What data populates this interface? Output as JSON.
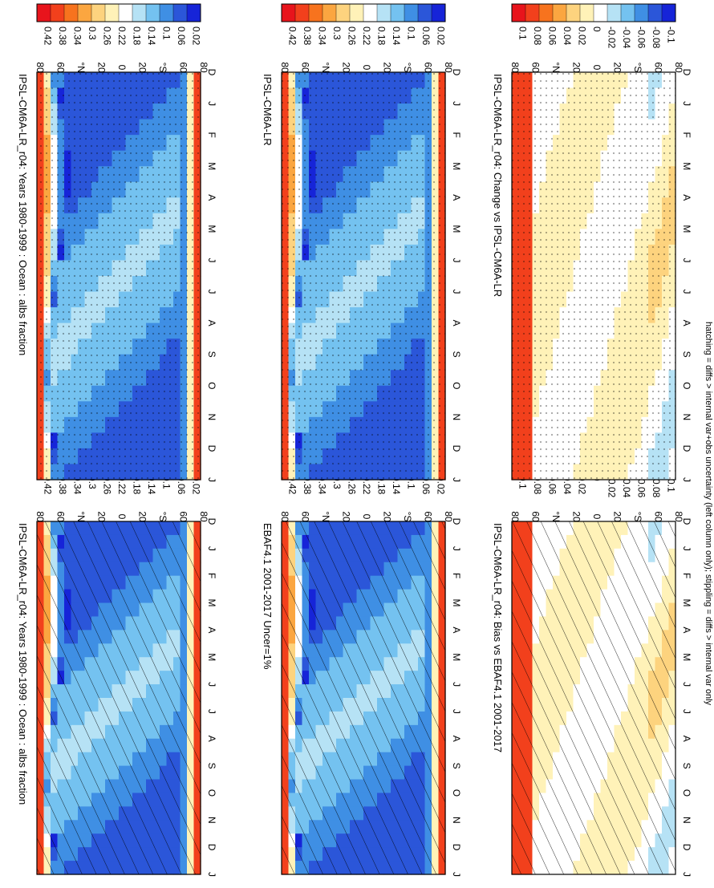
{
  "footer_note": "hatching = diffs > internal var+obs uncertainty (left column only); stippling = diffs > internal var only",
  "chart_data": [
    {
      "type": "heatmap",
      "title": "IPSL-CM6A-LR_r04: Years 1980-1999 : Ocean : albs fraction",
      "x_ticks": [
        "D",
        "J",
        "F",
        "M",
        "A",
        "M",
        "J",
        "J",
        "A",
        "S",
        "O",
        "N",
        "D",
        "J"
      ],
      "y_ticks": [
        "80",
        "60",
        "°N",
        "20",
        "0",
        "20",
        "°S",
        "60",
        "80"
      ],
      "colorbar_labels": [
        "0.42",
        "0.38",
        "0.34",
        "0.3",
        "0.26",
        "0.22",
        "0.18",
        "0.14",
        "0.1",
        "0.06",
        "0.02"
      ],
      "pattern": "hatch",
      "palette": "abs"
    },
    {
      "type": "heatmap",
      "title": "IPSL-CM6A-LR_r04: Years 1980-1999 : Ocean : albs fraction",
      "x_ticks": [
        "D",
        "J",
        "F",
        "M",
        "A",
        "M",
        "J",
        "J",
        "A",
        "S",
        "O",
        "N",
        "D",
        "J"
      ],
      "y_ticks": [
        "80",
        "60",
        "°N",
        "20",
        "0",
        "20",
        "°S",
        "60",
        "80"
      ],
      "colorbar_labels": [
        "0.42",
        "0.38",
        "0.34",
        "0.3",
        "0.26",
        "0.22",
        "0.18",
        "0.14",
        "0.1",
        "0.06",
        "0.02"
      ],
      "pattern": "stipple",
      "palette": "abs"
    },
    {
      "type": "heatmap",
      "title": "EBAF4.1 2001-2017 Uncer=1%",
      "x_ticks": [
        "D",
        "J",
        "F",
        "M",
        "A",
        "M",
        "J",
        "J",
        "A",
        "S",
        "O",
        "N",
        "D",
        "J"
      ],
      "y_ticks": [
        "80",
        "60",
        "°N",
        "20",
        "0",
        "20",
        "°S",
        "60",
        "80"
      ],
      "colorbar_labels": [
        "0.42",
        "0.38",
        "0.34",
        "0.3",
        "0.26",
        "0.22",
        "0.18",
        "0.14",
        "0.1",
        "0.06",
        "0.02"
      ],
      "pattern": "hatch",
      "palette": "abs"
    },
    {
      "type": "heatmap",
      "title": "IPSL-CM6A-LR",
      "x_ticks": [
        "D",
        "J",
        "F",
        "M",
        "A",
        "M",
        "J",
        "J",
        "A",
        "S",
        "O",
        "N",
        "D",
        "J"
      ],
      "y_ticks": [
        "80",
        "60",
        "°N",
        "20",
        "0",
        "20",
        "°S",
        "60",
        "80"
      ],
      "colorbar_labels": [
        "0.42",
        "0.38",
        "0.34",
        "0.3",
        "0.26",
        "0.22",
        "0.18",
        "0.14",
        "0.1",
        "0.06",
        "0.02"
      ],
      "pattern": "stipple",
      "palette": "abs"
    },
    {
      "type": "heatmap",
      "title": "IPSL-CM6A-LR_r04: Bias vs EBAF4.1 2001-2017",
      "x_ticks": [
        "D",
        "J",
        "F",
        "M",
        "A",
        "M",
        "J",
        "J",
        "A",
        "S",
        "O",
        "N",
        "D",
        "J"
      ],
      "y_ticks": [
        "80",
        "60",
        "°N",
        "20",
        "0",
        "20",
        "°S",
        "60",
        "80"
      ],
      "colorbar_labels": [
        "0.1",
        "0.08",
        "0.06",
        "0.04",
        "0.02",
        "0",
        "-0.02",
        "-0.04",
        "-0.06",
        "-0.08",
        "-0.1"
      ],
      "pattern": "hatch",
      "palette": "diff"
    },
    {
      "type": "heatmap",
      "title": "IPSL-CM6A-LR_r04: Change vs IPSL-CM6A-LR",
      "x_ticks": [
        "D",
        "J",
        "F",
        "M",
        "A",
        "M",
        "J",
        "J",
        "A",
        "S",
        "O",
        "N",
        "D",
        "J"
      ],
      "y_ticks": [
        "80",
        "60",
        "°N",
        "20",
        "0",
        "20",
        "°S",
        "60",
        "80"
      ],
      "colorbar_labels": [
        "0.1",
        "0.08",
        "0.06",
        "0.04",
        "0.02",
        "0",
        "-0.02",
        "-0.04",
        "-0.06",
        "-0.08",
        "-0.1"
      ],
      "pattern": "stipple",
      "palette": "diff"
    }
  ],
  "colors": {
    "abs_scale": [
      "#e8141c",
      "#f2401c",
      "#f7731e",
      "#fba640",
      "#fdd37e",
      "#fff2b8",
      "#ffffff",
      "#b6e2f5",
      "#74c2f0",
      "#3f8fe4",
      "#2b56d9",
      "#1624d8"
    ],
    "diff_scale": [
      "#e8141c",
      "#f2401c",
      "#f7731e",
      "#fba640",
      "#fdd37e",
      "#fff2b8",
      "#ffffff",
      "#b6e2f5",
      "#74c2f0",
      "#3f8fe4",
      "#2b56d9",
      "#1624d8"
    ]
  }
}
